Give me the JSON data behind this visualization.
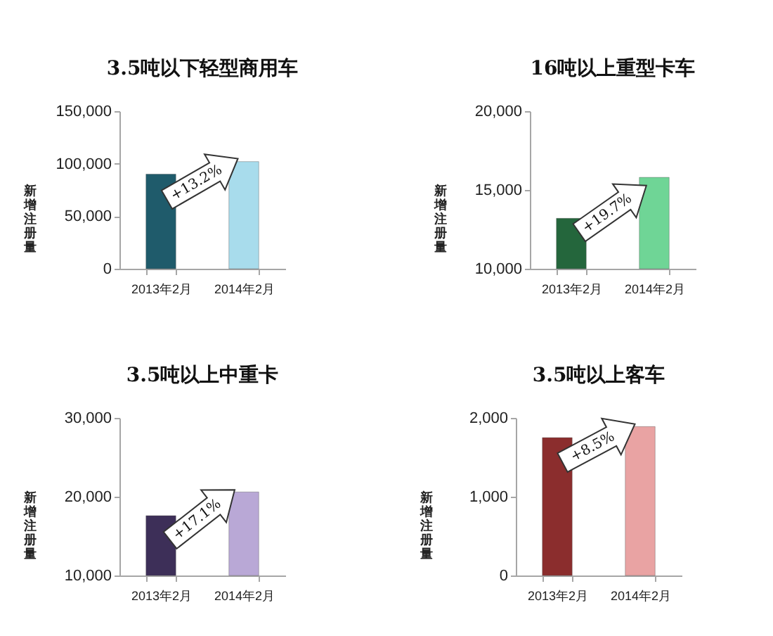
{
  "chart_data": [
    {
      "type": "bar",
      "title": "3.5吨以下轻型商用车",
      "ylabel": "新增注册量",
      "categories": [
        "2013年2月",
        "2014年2月"
      ],
      "values": [
        90000,
        102000
      ],
      "colors": [
        "#1f5b6b",
        "#a8dcec"
      ],
      "ylim": [
        0,
        150000
      ],
      "yticks": [
        0,
        {
          "value": 50000,
          "label": "50,000"
        },
        {
          "value": 100000,
          "label": "100,000"
        },
        {
          "value": 150000,
          "label": "150,000"
        }
      ],
      "annotations": [
        "+13.2%"
      ]
    },
    {
      "type": "bar",
      "title": "16吨以上重型卡车",
      "ylabel": "新增注册量",
      "categories": [
        "2013年2月",
        "2014年2月"
      ],
      "values": [
        13200,
        15800
      ],
      "colors": [
        "#24663c",
        "#6fd596"
      ],
      "ylim": [
        10000,
        20000
      ],
      "yticks": [
        {
          "value": 10000,
          "label": "10,000"
        },
        {
          "value": 15000,
          "label": "15,000"
        },
        {
          "value": 20000,
          "label": "20,000"
        }
      ],
      "annotations": [
        "+19.7%"
      ]
    },
    {
      "type": "bar",
      "title": "3.5吨以上中重卡",
      "ylabel": "新增注册量",
      "categories": [
        "2013年2月",
        "2014年2月"
      ],
      "values": [
        17600,
        20600
      ],
      "colors": [
        "#3d2f58",
        "#b9a8d6"
      ],
      "ylim": [
        10000,
        30000
      ],
      "yticks": [
        {
          "value": 10000,
          "label": "10,000"
        },
        {
          "value": 20000,
          "label": "20,000"
        },
        {
          "value": 30000,
          "label": "30,000"
        }
      ],
      "annotations": [
        "+17.1%"
      ]
    },
    {
      "type": "bar",
      "title": "3.5吨以上客车",
      "ylabel": "新增注册量",
      "categories": [
        "2013年2月",
        "2014年2月"
      ],
      "values": [
        1750,
        1890
      ],
      "colors": [
        "#8b2d2d",
        "#e9a3a3"
      ],
      "ylim": [
        0,
        2000
      ],
      "yticks": [
        0,
        {
          "value": 1000,
          "label": "1,000"
        },
        {
          "value": 2000,
          "label": "2,000"
        }
      ],
      "annotations": [
        "+8.5%"
      ]
    }
  ]
}
